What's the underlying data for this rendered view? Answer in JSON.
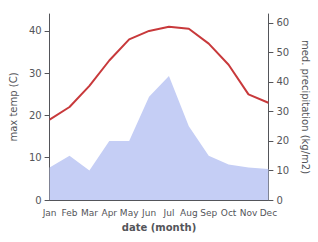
{
  "chart_data": {
    "type": "line",
    "categories": [
      "Jan",
      "Feb",
      "Mar",
      "Apr",
      "May",
      "Jun",
      "Jul",
      "Aug",
      "Sep",
      "Oct",
      "Nov",
      "Dec"
    ],
    "series": [
      {
        "type": "area",
        "color": "#c5cef5",
        "axis": "y2",
        "values": [
          11,
          15,
          10,
          20,
          20,
          35,
          42,
          25,
          15,
          12,
          11,
          10.5
        ]
      },
      {
        "type": "line",
        "color": "#c8393b",
        "values": [
          19,
          22,
          27,
          33,
          38,
          40,
          41,
          40.5,
          37,
          32,
          25,
          23
        ]
      }
    ],
    "xlabel": "date (month)",
    "ylabel": "max temp (C)",
    "y2label": "med. precipitation (kg/m2)",
    "ylim": [
      0,
      44
    ],
    "yticks": [
      0,
      10,
      20,
      30,
      40
    ],
    "y2lim": [
      0,
      63
    ],
    "y2ticks": [
      0,
      10,
      20,
      30,
      40,
      50,
      60
    ],
    "grid": false
  }
}
